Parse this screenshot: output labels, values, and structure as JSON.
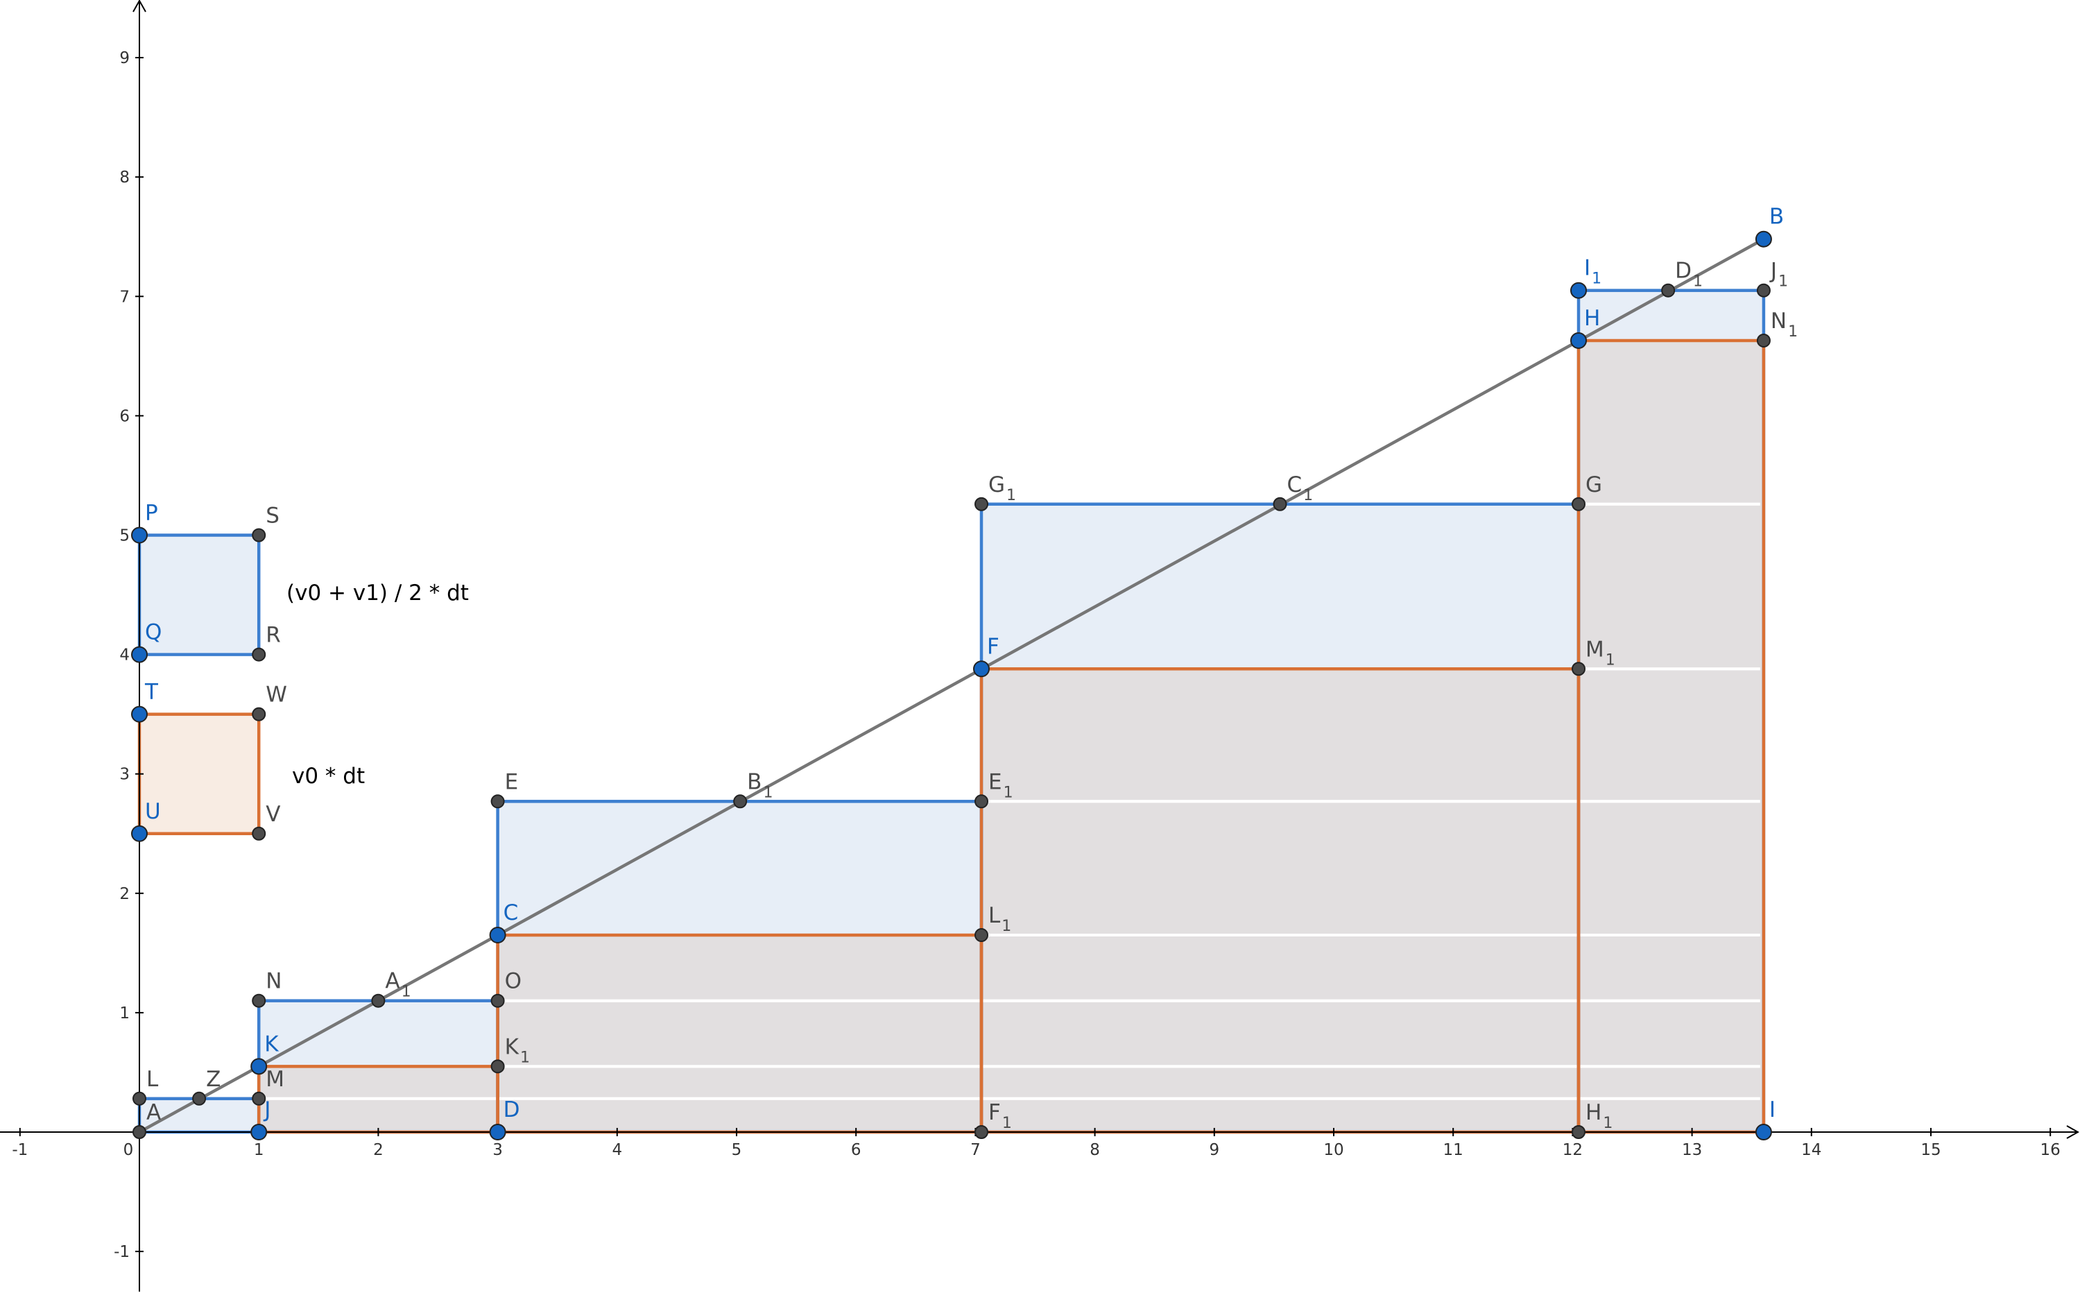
{
  "x_ticks": [
    "-1",
    "0",
    "1",
    "2",
    "3",
    "4",
    "5",
    "6",
    "7",
    "8",
    "9",
    "10",
    "11",
    "12",
    "13",
    "14",
    "15",
    "16"
  ],
  "y_ticks": [
    "-1",
    "1",
    "2",
    "3",
    "4",
    "5",
    "6",
    "7",
    "8",
    "9"
  ],
  "legend": {
    "average_label": "(v0 + v1) / 2 * dt",
    "base_label": "v0 * dt"
  },
  "colors": {
    "blue": "#3d7fd0",
    "blue_fill": "#e7eef7",
    "orange": "#d97034",
    "orange_fill": "#f8ece3",
    "under_fill": "#e2dfe0",
    "line": "#767676",
    "axis": "#000000",
    "blue_point": "#1565c0",
    "gray_point": "#4b4b4b"
  },
  "points": [
    {
      "id": "A",
      "name": "A",
      "sub": "",
      "x": 0,
      "y": 0,
      "style": "gray",
      "dx": 10,
      "dy": -18
    },
    {
      "id": "B",
      "name": "B",
      "sub": "",
      "x": 13.6,
      "y": 7.48,
      "style": "blue",
      "dx": 8,
      "dy": -22
    },
    {
      "id": "C",
      "name": "C",
      "sub": "",
      "x": 3,
      "y": 1.65,
      "style": "blue",
      "dx": 8,
      "dy": -22
    },
    {
      "id": "D",
      "name": "D",
      "sub": "",
      "x": 3,
      "y": 0,
      "style": "blue",
      "dx": 8,
      "dy": -22
    },
    {
      "id": "E",
      "name": "E",
      "sub": "",
      "x": 3,
      "y": 2.77,
      "style": "gray",
      "dx": 10,
      "dy": -18
    },
    {
      "id": "F",
      "name": "F",
      "sub": "",
      "x": 7.05,
      "y": 3.88,
      "style": "blue",
      "dx": 8,
      "dy": -22
    },
    {
      "id": "G",
      "name": "G",
      "sub": "",
      "x": 12.05,
      "y": 5.26,
      "style": "gray",
      "dx": 10,
      "dy": -18
    },
    {
      "id": "H",
      "name": "H",
      "sub": "",
      "x": 12.05,
      "y": 6.63,
      "style": "blue",
      "dx": 8,
      "dy": -22
    },
    {
      "id": "I",
      "name": "I",
      "sub": "",
      "x": 13.6,
      "y": 0,
      "style": "blue",
      "dx": 8,
      "dy": -22
    },
    {
      "id": "J",
      "name": "J",
      "sub": "",
      "x": 1,
      "y": 0,
      "style": "blue",
      "dx": 8,
      "dy": -22
    },
    {
      "id": "K",
      "name": "K",
      "sub": "",
      "x": 1,
      "y": 0.55,
      "style": "blue",
      "dx": 8,
      "dy": -22
    },
    {
      "id": "L",
      "name": "L",
      "sub": "",
      "x": 0,
      "y": 0.28,
      "style": "gray",
      "dx": 10,
      "dy": -18
    },
    {
      "id": "M",
      "name": "M",
      "sub": "",
      "x": 1,
      "y": 0.28,
      "style": "gray",
      "dx": 10,
      "dy": -18
    },
    {
      "id": "N",
      "name": "N",
      "sub": "",
      "x": 1,
      "y": 1.1,
      "style": "gray",
      "dx": 10,
      "dy": -18
    },
    {
      "id": "O",
      "name": "O",
      "sub": "",
      "x": 3,
      "y": 1.1,
      "style": "gray",
      "dx": 10,
      "dy": -18
    },
    {
      "id": "P",
      "name": "P",
      "sub": "",
      "x": 0,
      "y": 5,
      "style": "blue",
      "dx": 8,
      "dy": -22
    },
    {
      "id": "Q",
      "name": "Q",
      "sub": "",
      "x": 0,
      "y": 4,
      "style": "blue",
      "dx": 8,
      "dy": -22
    },
    {
      "id": "R",
      "name": "R",
      "sub": "",
      "x": 1,
      "y": 4,
      "style": "gray",
      "dx": 10,
      "dy": -18
    },
    {
      "id": "S",
      "name": "S",
      "sub": "",
      "x": 1,
      "y": 5,
      "style": "gray",
      "dx": 10,
      "dy": -18
    },
    {
      "id": "T",
      "name": "T",
      "sub": "",
      "x": 0,
      "y": 3.5,
      "style": "blue",
      "dx": 8,
      "dy": -22
    },
    {
      "id": "U",
      "name": "U",
      "sub": "",
      "x": 0,
      "y": 2.5,
      "style": "blue",
      "dx": 8,
      "dy": -22
    },
    {
      "id": "V",
      "name": "V",
      "sub": "",
      "x": 1,
      "y": 2.5,
      "style": "gray",
      "dx": 10,
      "dy": -18
    },
    {
      "id": "W",
      "name": "W",
      "sub": "",
      "x": 1,
      "y": 3.5,
      "style": "gray",
      "dx": 10,
      "dy": -18
    },
    {
      "id": "Z",
      "name": "Z",
      "sub": "",
      "x": 0.5,
      "y": 0.28,
      "style": "gray",
      "dx": 10,
      "dy": -18
    },
    {
      "id": "A1",
      "name": "A",
      "sub": "1",
      "x": 2,
      "y": 1.1,
      "style": "gray",
      "dx": 10,
      "dy": -18
    },
    {
      "id": "B1",
      "name": "B",
      "sub": "1",
      "x": 5.03,
      "y": 2.77,
      "style": "gray",
      "dx": 10,
      "dy": -18
    },
    {
      "id": "C1",
      "name": "C",
      "sub": "1",
      "x": 9.55,
      "y": 5.26,
      "style": "gray",
      "dx": 10,
      "dy": -18
    },
    {
      "id": "D1",
      "name": "D",
      "sub": "1",
      "x": 12.8,
      "y": 7.05,
      "style": "gray",
      "dx": 10,
      "dy": -18
    },
    {
      "id": "E1",
      "name": "E",
      "sub": "1",
      "x": 7.05,
      "y": 2.77,
      "style": "gray",
      "dx": 10,
      "dy": -18
    },
    {
      "id": "F1",
      "name": "F",
      "sub": "1",
      "x": 7.05,
      "y": 0,
      "style": "gray",
      "dx": 10,
      "dy": -18
    },
    {
      "id": "G1",
      "name": "G",
      "sub": "1",
      "x": 7.05,
      "y": 5.26,
      "style": "gray",
      "dx": 10,
      "dy": -18
    },
    {
      "id": "H1",
      "name": "H",
      "sub": "1",
      "x": 12.05,
      "y": 0,
      "style": "gray",
      "dx": 10,
      "dy": -18
    },
    {
      "id": "I1",
      "name": "I",
      "sub": "1",
      "x": 12.05,
      "y": 7.05,
      "style": "blue",
      "dx": 8,
      "dy": -22
    },
    {
      "id": "J1",
      "name": "J",
      "sub": "1",
      "x": 13.6,
      "y": 7.05,
      "style": "gray",
      "dx": 10,
      "dy": -18
    },
    {
      "id": "K1",
      "name": "K",
      "sub": "1",
      "x": 3,
      "y": 0.55,
      "style": "gray",
      "dx": 10,
      "dy": -18
    },
    {
      "id": "L1",
      "name": "L",
      "sub": "1",
      "x": 7.05,
      "y": 1.65,
      "style": "gray",
      "dx": 10,
      "dy": -18
    },
    {
      "id": "M1",
      "name": "M",
      "sub": "1",
      "x": 12.05,
      "y": 3.88,
      "style": "gray",
      "dx": 10,
      "dy": -18
    },
    {
      "id": "N1",
      "name": "N",
      "sub": "1",
      "x": 13.6,
      "y": 6.63,
      "style": "gray",
      "dx": 10,
      "dy": -18
    }
  ],
  "blue_rects": [
    {
      "id": "rect-ALMJ",
      "x0": 0,
      "x1": 1,
      "y0": 0,
      "y1": 0.28
    },
    {
      "id": "rect-KNOD",
      "x0": 1,
      "x1": 3,
      "y0": 0,
      "y1": 1.1
    },
    {
      "id": "rect-CEE1F1",
      "x0": 3,
      "x1": 7.05,
      "y0": 0,
      "y1": 2.77
    },
    {
      "id": "rect-FG1GH1",
      "x0": 7.05,
      "x1": 12.05,
      "y0": 0,
      "y1": 5.26
    },
    {
      "id": "rect-HI1J1I",
      "x0": 12.05,
      "x1": 13.6,
      "y0": 0,
      "y1": 7.05
    }
  ],
  "orange_rects": [
    {
      "id": "rect-JKK1D",
      "x0": 1,
      "x1": 3,
      "y0": 0,
      "y1": 0.55
    },
    {
      "id": "rect-DCL1F1",
      "x0": 3,
      "x1": 7.05,
      "y0": 0,
      "y1": 1.65
    },
    {
      "id": "rect-F1FM1H1",
      "x0": 7.05,
      "x1": 12.05,
      "y0": 0,
      "y1": 3.88
    },
    {
      "id": "rect-H1HN1I",
      "x0": 12.05,
      "x1": 13.6,
      "y0": 0,
      "y1": 6.63
    }
  ],
  "gridlines_y": [
    0.28,
    0.55,
    1.1,
    1.65,
    2.77,
    3.88,
    5.26
  ],
  "line_segment": {
    "x0": 0,
    "y0": 0,
    "x1": 13.6,
    "y1": 7.48
  },
  "legend_boxes": {
    "blue": {
      "x0": 0,
      "x1": 1,
      "y0": 4,
      "y1": 5
    },
    "orange": {
      "x0": 0,
      "x1": 1,
      "y0": 2.5,
      "y1": 3.5
    }
  }
}
